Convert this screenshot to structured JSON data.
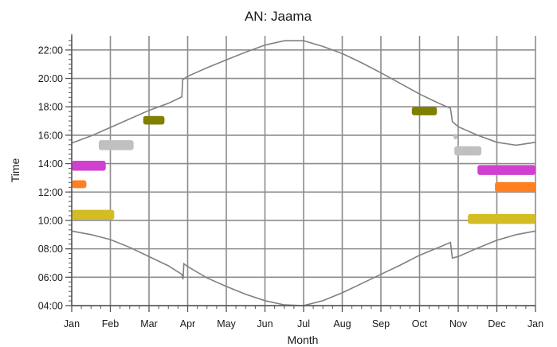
{
  "chart_data": {
    "type": "scatter",
    "title": "AN: Jaama",
    "xlabel": "Month",
    "ylabel": "Time",
    "xlim": [
      0,
      12
    ],
    "ylim": [
      4,
      23
    ],
    "x_ticks": [
      {
        "value": 0,
        "label": "Jan"
      },
      {
        "value": 1,
        "label": "Feb"
      },
      {
        "value": 2,
        "label": "Mar"
      },
      {
        "value": 3,
        "label": "Apr"
      },
      {
        "value": 4,
        "label": "May"
      },
      {
        "value": 5,
        "label": "Jun"
      },
      {
        "value": 6,
        "label": "Jul"
      },
      {
        "value": 7,
        "label": "Aug"
      },
      {
        "value": 8,
        "label": "Sep"
      },
      {
        "value": 9,
        "label": "Oct"
      },
      {
        "value": 10,
        "label": "Nov"
      },
      {
        "value": 11,
        "label": "Dec"
      },
      {
        "value": 12,
        "label": "Jan"
      }
    ],
    "y_ticks": [
      {
        "value": 4,
        "label": "04:00"
      },
      {
        "value": 6,
        "label": "06:00"
      },
      {
        "value": 8,
        "label": "08:00"
      },
      {
        "value": 10,
        "label": "10:00"
      },
      {
        "value": 12,
        "label": "12:00"
      },
      {
        "value": 14,
        "label": "14:00"
      },
      {
        "value": 16,
        "label": "16:00"
      },
      {
        "value": 18,
        "label": "18:00"
      },
      {
        "value": 20,
        "label": "20:00"
      },
      {
        "value": 22,
        "label": "22:00"
      }
    ],
    "grid": true,
    "curves": [
      {
        "name": "sunset",
        "color": "#808080",
        "points": [
          [
            0,
            15.45
          ],
          [
            0.5,
            15.95
          ],
          [
            1,
            16.55
          ],
          [
            1.5,
            17.15
          ],
          [
            2,
            17.75
          ],
          [
            2.5,
            18.25
          ],
          [
            2.85,
            18.7
          ],
          [
            2.87,
            19.9
          ],
          [
            3,
            20.15
          ],
          [
            3.5,
            20.75
          ],
          [
            4,
            21.3
          ],
          [
            4.5,
            21.85
          ],
          [
            5,
            22.35
          ],
          [
            5.5,
            22.65
          ],
          [
            6,
            22.65
          ],
          [
            6.5,
            22.25
          ],
          [
            7,
            21.75
          ],
          [
            7.5,
            21.1
          ],
          [
            8,
            20.4
          ],
          [
            8.5,
            19.65
          ],
          [
            9,
            18.9
          ],
          [
            9.5,
            18.25
          ],
          [
            9.8,
            17.9
          ],
          [
            9.85,
            16.95
          ],
          [
            10,
            16.6
          ],
          [
            10.5,
            16.0
          ],
          [
            11,
            15.5
          ],
          [
            11.5,
            15.3
          ],
          [
            12,
            15.5
          ]
        ]
      },
      {
        "name": "sunrise",
        "color": "#808080",
        "points": [
          [
            0,
            9.25
          ],
          [
            0.5,
            9.0
          ],
          [
            1,
            8.65
          ],
          [
            1.5,
            8.1
          ],
          [
            2,
            7.45
          ],
          [
            2.5,
            6.8
          ],
          [
            2.85,
            6.2
          ],
          [
            2.88,
            5.85
          ],
          [
            2.9,
            6.95
          ],
          [
            3,
            6.75
          ],
          [
            3.5,
            5.95
          ],
          [
            4,
            5.35
          ],
          [
            4.5,
            4.8
          ],
          [
            5,
            4.35
          ],
          [
            5.5,
            4.05
          ],
          [
            6,
            4.0
          ],
          [
            6.5,
            4.35
          ],
          [
            7,
            4.9
          ],
          [
            7.5,
            5.55
          ],
          [
            8,
            6.2
          ],
          [
            8.5,
            6.85
          ],
          [
            9,
            7.55
          ],
          [
            9.5,
            8.1
          ],
          [
            9.8,
            8.45
          ],
          [
            9.85,
            7.35
          ],
          [
            10,
            7.45
          ],
          [
            10.5,
            8.05
          ],
          [
            11,
            8.6
          ],
          [
            11.5,
            9.0
          ],
          [
            12,
            9.25
          ]
        ]
      }
    ],
    "series": [
      {
        "name": "",
        "color": "#d4bc24",
        "type": "band",
        "x_start": 0.0,
        "x_end": 1.1,
        "y_center": 10.4,
        "thickness": 0.7
      },
      {
        "name": "",
        "color": "#d4bc24",
        "type": "band",
        "x_start": 10.25,
        "x_end": 12.0,
        "y_center": 10.1,
        "thickness": 0.7
      },
      {
        "name": "",
        "color": "#ff8020",
        "type": "band",
        "x_start": 0.0,
        "x_end": 0.38,
        "y_center": 12.55,
        "thickness": 0.55
      },
      {
        "name": "",
        "color": "#ff8020",
        "type": "band",
        "x_start": 10.95,
        "x_end": 12.0,
        "y_center": 12.35,
        "thickness": 0.7
      },
      {
        "name": "",
        "color": "#d040d0",
        "type": "band",
        "x_start": 0.0,
        "x_end": 0.88,
        "y_center": 13.85,
        "thickness": 0.7
      },
      {
        "name": "",
        "color": "#d040d0",
        "type": "band",
        "x_start": 10.5,
        "x_end": 12.0,
        "y_center": 13.55,
        "thickness": 0.7
      },
      {
        "name": "",
        "color": "#c0c0c0",
        "type": "band",
        "x_start": 0.7,
        "x_end": 1.6,
        "y_center": 15.3,
        "thickness": 0.7
      },
      {
        "name": "",
        "color": "#c0c0c0",
        "type": "band",
        "x_start": 9.9,
        "x_end": 10.6,
        "y_center": 14.9,
        "thickness": 0.65
      },
      {
        "name": "",
        "color": "#c0c0c0",
        "type": "band",
        "x_start": 9.88,
        "x_end": 9.98,
        "y_center": 15.9,
        "thickness": 0.4
      },
      {
        "name": "",
        "color": "#808000",
        "type": "band",
        "x_start": 1.85,
        "x_end": 2.4,
        "y_center": 17.05,
        "thickness": 0.6
      },
      {
        "name": "",
        "color": "#808000",
        "type": "band",
        "x_start": 8.8,
        "x_end": 9.45,
        "y_center": 17.7,
        "thickness": 0.6
      }
    ]
  }
}
